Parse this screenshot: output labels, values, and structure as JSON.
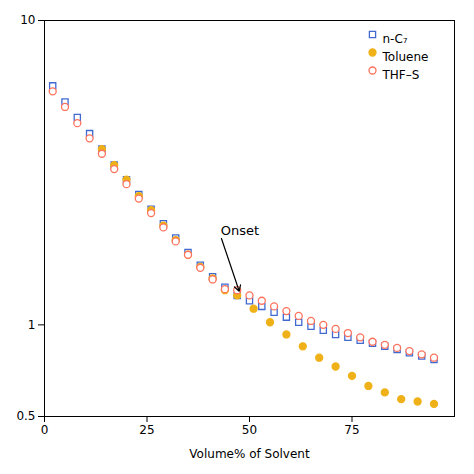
{
  "chart_data": {
    "type": "scatter",
    "xlabel": "Volume% of Solvent",
    "xlim": [
      0,
      100
    ],
    "xticks": [
      0,
      25,
      50,
      75
    ],
    "ylim": [
      0.5,
      10
    ],
    "yticks": [
      0.5,
      1,
      10
    ],
    "log": "y",
    "grid": false,
    "legend": "upper right",
    "series": [
      {
        "name": "n-C₇",
        "marker": "square-open",
        "x": [
          2,
          5,
          8,
          11,
          14,
          17,
          20,
          23,
          26,
          29,
          32,
          35,
          38,
          41,
          44,
          47,
          50,
          53,
          56,
          59,
          62,
          65,
          68,
          71,
          74,
          77,
          80,
          83,
          86,
          89,
          92,
          95
        ],
        "values": [
          6.1,
          5.4,
          4.8,
          4.25,
          3.78,
          3.35,
          3.0,
          2.68,
          2.4,
          2.15,
          1.93,
          1.73,
          1.57,
          1.44,
          1.33,
          1.25,
          1.2,
          1.15,
          1.1,
          1.06,
          1.02,
          0.99,
          0.96,
          0.93,
          0.91,
          0.89,
          0.87,
          0.85,
          0.83,
          0.81,
          0.79,
          0.77
        ]
      },
      {
        "name": "Toluene",
        "marker": "circle-filled",
        "x": [
          14,
          17,
          20,
          23,
          26,
          29,
          32,
          35,
          38,
          41,
          44,
          47,
          51,
          55,
          59,
          63,
          67,
          71,
          75,
          79,
          83,
          87,
          91,
          95
        ],
        "values": [
          3.78,
          3.35,
          3.0,
          2.65,
          2.38,
          2.12,
          1.9,
          1.7,
          1.55,
          1.42,
          1.3,
          1.25,
          1.13,
          1.02,
          0.93,
          0.85,
          0.78,
          0.73,
          0.68,
          0.63,
          0.6,
          0.57,
          0.56,
          0.55
        ]
      },
      {
        "name": "THF–S",
        "marker": "circle-open",
        "x": [
          2,
          5,
          8,
          11,
          14,
          17,
          20,
          23,
          26,
          29,
          32,
          35,
          38,
          41,
          44,
          47,
          50,
          53,
          56,
          59,
          62,
          65,
          68,
          71,
          74,
          77,
          80,
          83,
          86,
          89,
          92,
          95
        ],
        "values": [
          5.85,
          5.2,
          4.6,
          4.1,
          3.65,
          3.25,
          2.9,
          2.6,
          2.33,
          2.09,
          1.88,
          1.7,
          1.54,
          1.41,
          1.31,
          1.3,
          1.25,
          1.2,
          1.15,
          1.11,
          1.07,
          1.03,
          1.0,
          0.97,
          0.94,
          0.91,
          0.88,
          0.86,
          0.84,
          0.82,
          0.8,
          0.78
        ]
      }
    ],
    "annotations": [
      {
        "text": "Onset",
        "xy": [
          47.5,
          1.29
        ],
        "xytext": [
          43,
          1.95
        ]
      }
    ]
  }
}
